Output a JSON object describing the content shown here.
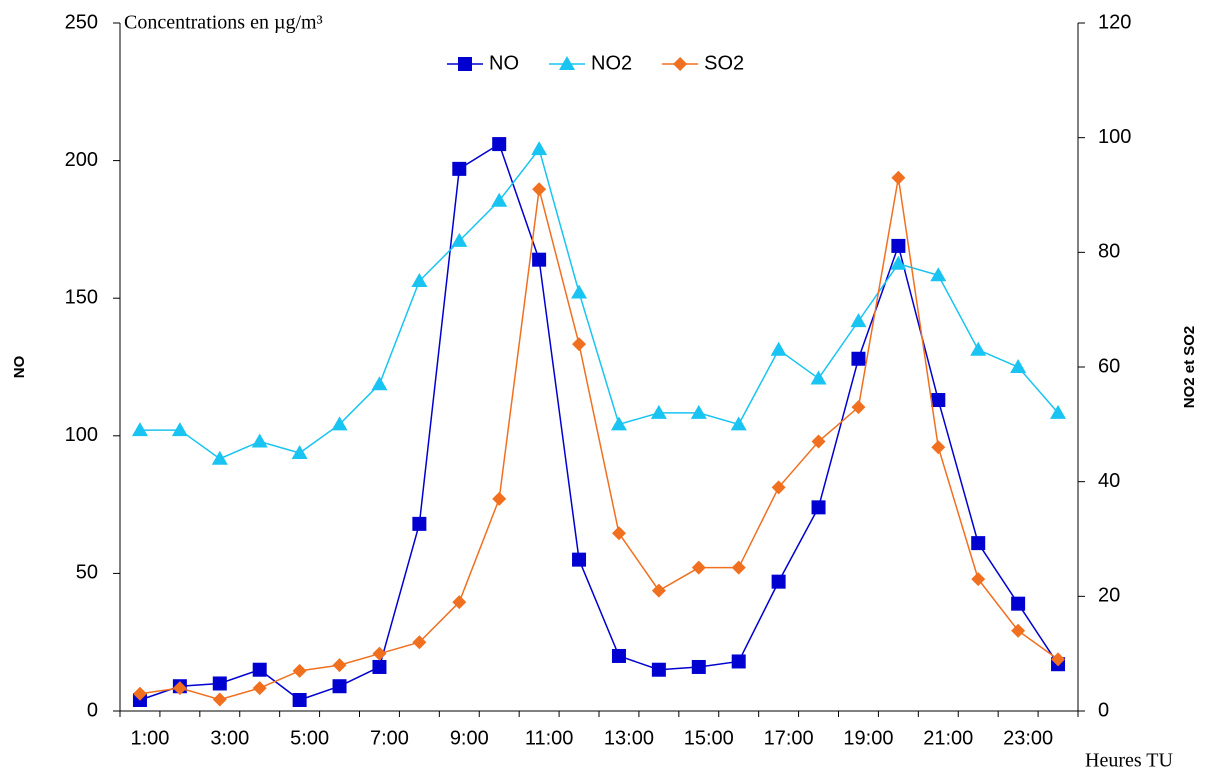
{
  "chart_data": {
    "type": "line",
    "annotation": "Concentrations en µg/m³",
    "x_label": "Heures TU",
    "y_label": "NO",
    "y2_label": "NO2 et SO2",
    "categories": [
      "1:00",
      null,
      "3:00",
      null,
      "5:00",
      null,
      "7:00",
      null,
      "9:00",
      null,
      "11:00",
      null,
      "13:00",
      null,
      "15:00",
      null,
      "17:00",
      null,
      "19:00",
      null,
      "21:00",
      null,
      "23:00",
      null
    ],
    "series": [
      {
        "name": "NO",
        "color": "#0000d0",
        "marker": "square",
        "axis": "y",
        "values": [
          4,
          9,
          10,
          15,
          4,
          9,
          16,
          68,
          197,
          206,
          164,
          55,
          20,
          15,
          16,
          18,
          47,
          74,
          128,
          169,
          113,
          61,
          39,
          17
        ]
      },
      {
        "name": "NO2",
        "color": "#19c4f2",
        "marker": "triangle",
        "axis": "y2",
        "values": [
          49,
          49,
          44,
          47,
          45,
          50,
          57,
          75,
          82,
          89,
          98,
          73,
          50,
          52,
          52,
          50,
          63,
          58,
          68,
          78,
          76,
          63,
          60,
          52
        ]
      },
      {
        "name": "SO2",
        "color": "#f07020",
        "marker": "diamond",
        "axis": "y2",
        "values": [
          3,
          4,
          2,
          4,
          7,
          8,
          10,
          12,
          19,
          37,
          91,
          64,
          31,
          21,
          25,
          25,
          39,
          47,
          53,
          93,
          46,
          23,
          14,
          9
        ]
      }
    ],
    "ylim": [
      0,
      250
    ],
    "yticks": [
      0,
      50,
      100,
      150,
      200,
      250
    ],
    "y2lim": [
      0,
      120
    ],
    "y2ticks": [
      0,
      20,
      40,
      60,
      80,
      100,
      120
    ],
    "grid": false,
    "legend": "top"
  }
}
